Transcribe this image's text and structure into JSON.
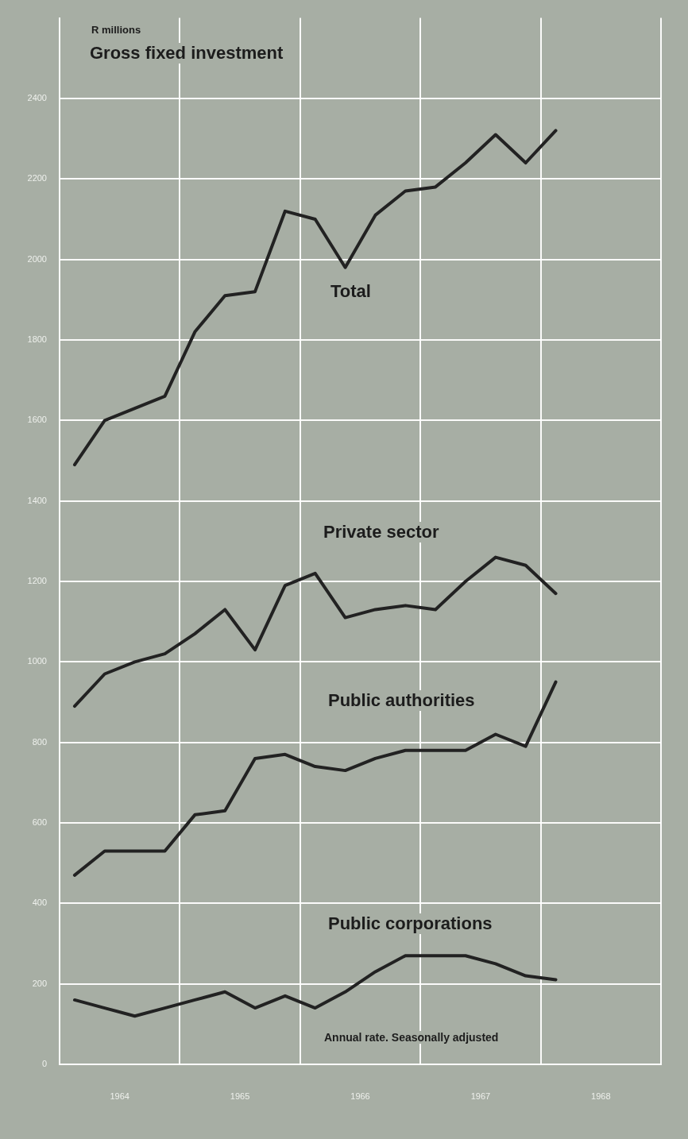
{
  "chart_data": {
    "type": "line",
    "title": "Gross fixed investment",
    "ylabel": "R millions",
    "x": [
      1964.125,
      1964.375,
      1964.625,
      1964.875,
      1965.125,
      1965.375,
      1965.625,
      1965.875,
      1966.125,
      1966.375,
      1966.625,
      1966.875,
      1967.125,
      1967.375,
      1967.625,
      1967.875,
      1968.125
    ],
    "series": [
      {
        "name": "Total",
        "color": "#222222",
        "values": [
          1490,
          1600,
          1630,
          1660,
          1820,
          1910,
          1920,
          2120,
          2100,
          1980,
          2110,
          2170,
          2180,
          2240,
          2310,
          2240,
          2320
        ]
      },
      {
        "name": "Private sector",
        "color": "#222222",
        "values": [
          890,
          970,
          1000,
          1020,
          1070,
          1130,
          1030,
          1190,
          1220,
          1110,
          1130,
          1140,
          1130,
          1200,
          1260,
          1240,
          1170
        ]
      },
      {
        "name": "Public authorities",
        "color": "#222222",
        "values": [
          470,
          530,
          530,
          530,
          620,
          630,
          760,
          770,
          740,
          730,
          760,
          780,
          780,
          780,
          820,
          790,
          950
        ]
      },
      {
        "name": "Public corporations",
        "color": "#222222",
        "values": [
          160,
          140,
          120,
          140,
          160,
          180,
          140,
          170,
          140,
          180,
          230,
          270,
          270,
          270,
          250,
          220,
          210
        ]
      }
    ],
    "xlim": [
      1964,
      1969
    ],
    "xticks": [
      {
        "value": 1964,
        "label": null
      },
      {
        "value": 1964.5,
        "label": "1964"
      },
      {
        "value": 1965,
        "label": null
      },
      {
        "value": 1965.5,
        "label": "1965"
      },
      {
        "value": 1966,
        "label": null
      },
      {
        "value": 1966.5,
        "label": "1966"
      },
      {
        "value": 1967,
        "label": null
      },
      {
        "value": 1967.5,
        "label": "1967"
      },
      {
        "value": 1968,
        "label": null
      },
      {
        "value": 1968.5,
        "label": "1968"
      },
      {
        "value": 1969,
        "label": null
      }
    ],
    "ylim": [
      0,
      2600
    ],
    "yticks": [
      0,
      200,
      400,
      600,
      800,
      1000,
      1200,
      1400,
      1600,
      1800,
      2000,
      2200,
      2400
    ],
    "grid": true,
    "marker": "none",
    "line_style": "solid",
    "legend": false,
    "annotations": [
      "Annual rate. Seasonally adjusted"
    ]
  }
}
